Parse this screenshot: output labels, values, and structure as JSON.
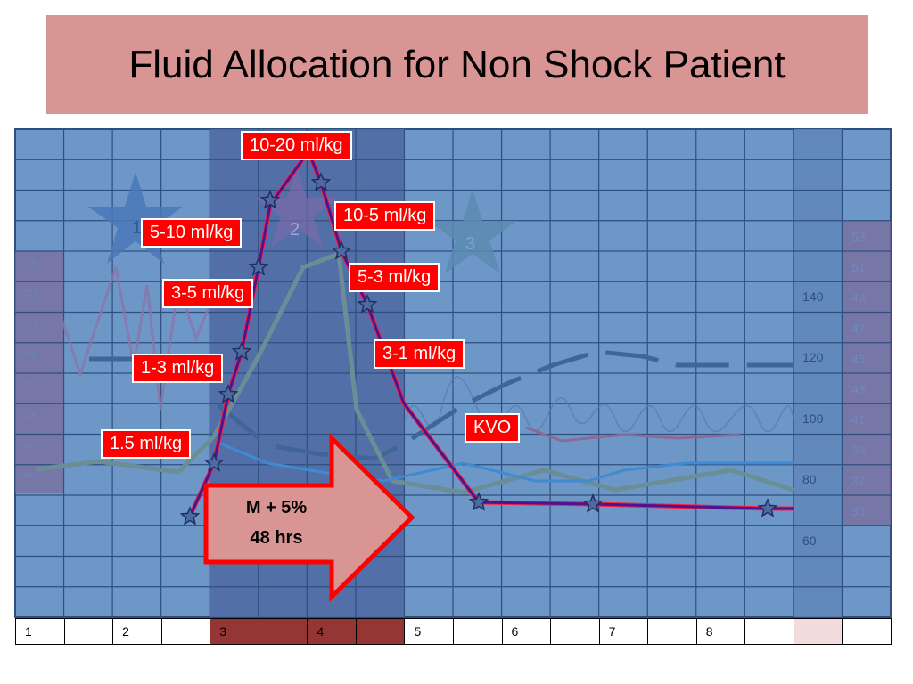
{
  "title": "Fluid Allocation for Non Shock Patient",
  "colors": {
    "title_bg": "#d99594",
    "grid_bg": "#6d97c7",
    "critical_band": "#4f6aa3",
    "label_bg": "#ff0000",
    "arrow_fill": "#d99594",
    "arrow_border": "#ff0000",
    "fluid_line": "#5b0fa0"
  },
  "phase_stars": [
    "1",
    "2",
    "3"
  ],
  "rate_labels": [
    "10-20 ml/kg",
    "10-5 ml/kg",
    "5-10 ml/kg",
    "5-3 ml/kg",
    "3-5 ml/kg",
    "3-1 ml/kg",
    "1-3 ml/kg",
    "KVO",
    "1.5 ml/kg"
  ],
  "arrow": {
    "line1": "M + 5%",
    "line2": "48 hrs"
  },
  "left_scale": [
    "105",
    "104",
    "103",
    "102",
    "101",
    "100",
    "99",
    "98"
  ],
  "mid_scale": [
    "140",
    "120",
    "100",
    "80",
    "60"
  ],
  "right_scale": [
    "53",
    "51",
    "49",
    "47",
    "45",
    "43",
    "41",
    "39",
    "37",
    "35"
  ],
  "days": [
    "1",
    "",
    "2",
    "",
    "3",
    "",
    "4",
    "",
    "5",
    "",
    "6",
    "",
    "7",
    "",
    "8",
    "",
    "",
    ""
  ]
}
